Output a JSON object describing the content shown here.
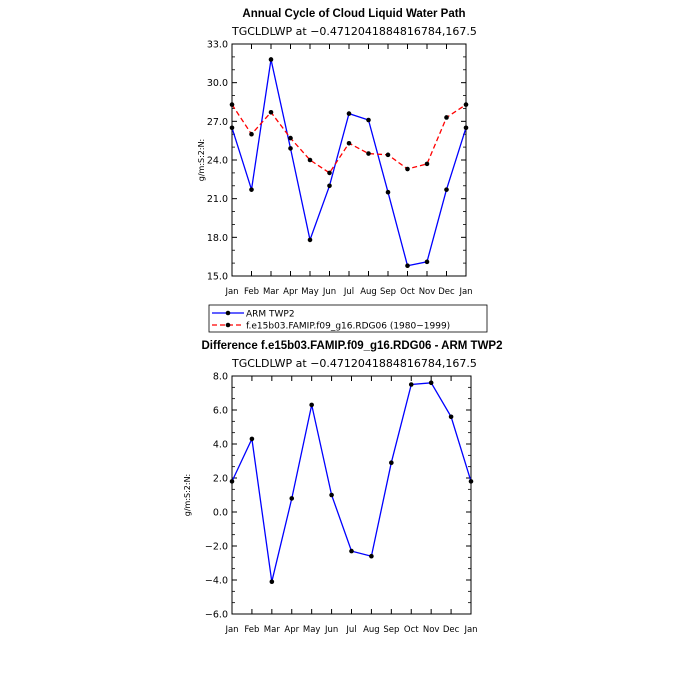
{
  "chart_data": [
    {
      "type": "line",
      "title": "Annual Cycle of Cloud Liquid Water Path",
      "subtitle": "TGCLDLWP at −0.4712041884816784,167.5",
      "ylabel": "g/m:S:2:N:",
      "ylim": [
        15.0,
        33.0
      ],
      "yticks": [
        "15.0",
        "18.0",
        "21.0",
        "24.0",
        "27.0",
        "30.0",
        "33.0"
      ],
      "categories": [
        "Jan",
        "Feb",
        "Mar",
        "Apr",
        "May",
        "Jun",
        "Jul",
        "Aug",
        "Sep",
        "Oct",
        "Nov",
        "Dec",
        "Jan"
      ],
      "series": [
        {
          "name": "ARM TWP2",
          "color": "#0000ff",
          "dash": "solid",
          "values": [
            26.5,
            21.7,
            31.8,
            24.9,
            17.8,
            22.0,
            27.6,
            27.1,
            21.5,
            15.8,
            16.1,
            21.7,
            26.5
          ]
        },
        {
          "name": "f.e15b03.FAMIP.f09_g16.RDG06 (1980−1999)",
          "color": "#ff0000",
          "dash": "dashed",
          "values": [
            28.3,
            26.0,
            27.7,
            25.7,
            24.0,
            23.0,
            25.3,
            24.5,
            24.4,
            23.3,
            23.7,
            27.3,
            28.3
          ]
        }
      ]
    },
    {
      "type": "line",
      "title": "Difference f.e15b03.FAMIP.f09_g16.RDG06 - ARM TWP2",
      "subtitle": "TGCLDLWP at −0.4712041884816784,167.5",
      "ylabel": "g/m:S:2:N:",
      "ylim": [
        -6.0,
        8.0
      ],
      "yticks": [
        "−6.0",
        "−4.0",
        "−2.0",
        "0.0",
        "2.0",
        "4.0",
        "6.0",
        "8.0"
      ],
      "categories": [
        "Jan",
        "Feb",
        "Mar",
        "Apr",
        "May",
        "Jun",
        "Jul",
        "Aug",
        "Sep",
        "Oct",
        "Nov",
        "Dec",
        "Jan"
      ],
      "series": [
        {
          "color": "#0000ff",
          "dash": "solid",
          "values": [
            1.8,
            4.3,
            -4.1,
            0.8,
            6.3,
            1.0,
            -2.3,
            -2.6,
            2.9,
            7.5,
            7.6,
            5.6,
            1.8
          ]
        }
      ]
    }
  ]
}
